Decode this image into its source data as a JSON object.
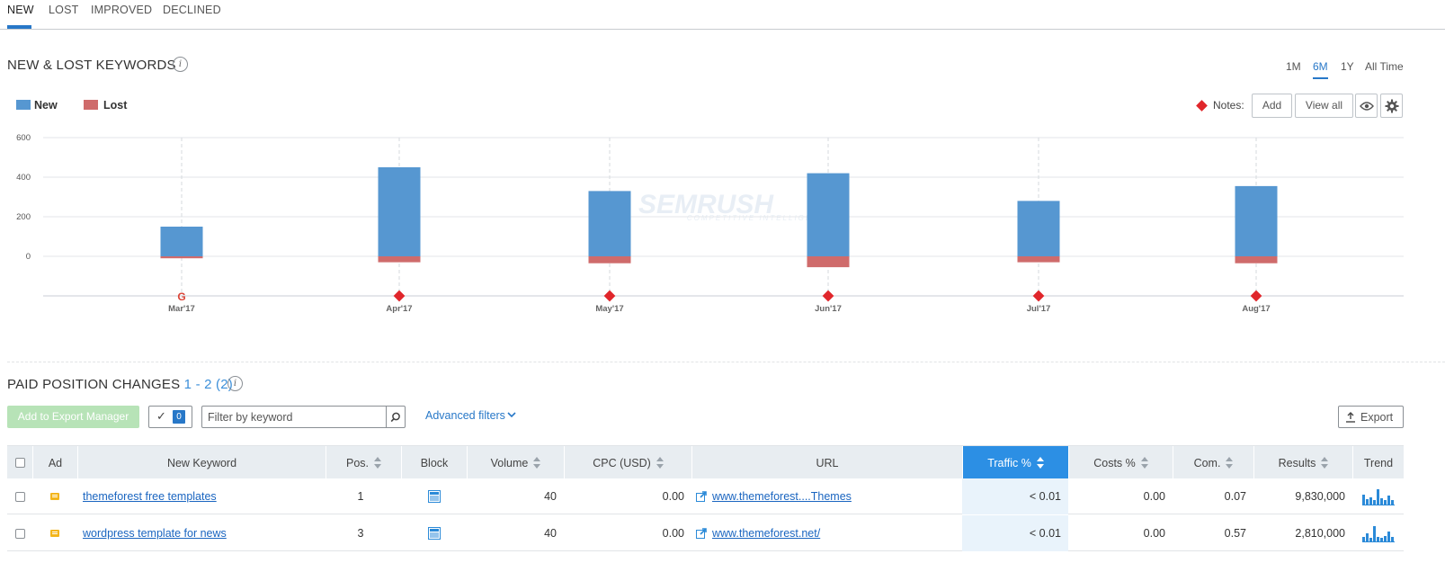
{
  "tabs": [
    {
      "label": "NEW",
      "active": true
    },
    {
      "label": "LOST",
      "active": false
    },
    {
      "label": "IMPROVED",
      "active": false
    },
    {
      "label": "DECLINED",
      "active": false
    }
  ],
  "keywords_section": {
    "title": "NEW & LOST KEYWORDS",
    "info_icon": "i"
  },
  "periods": [
    {
      "label": "1M",
      "active": false
    },
    {
      "label": "6M",
      "active": true
    },
    {
      "label": "1Y",
      "active": false
    },
    {
      "label": "All Time",
      "active": false
    }
  ],
  "legend": [
    {
      "label": "New",
      "color": "#5697d1"
    },
    {
      "label": "Lost",
      "color": "#cf6b6b"
    }
  ],
  "notes": {
    "label": "Notes:",
    "add_label": "Add",
    "view_all_label": "View all",
    "eye_icon": "eye-icon",
    "gear_icon": "gear-icon",
    "marker_color": "#e0262b"
  },
  "chart_data": {
    "type": "bar",
    "categories": [
      "Mar'17",
      "Apr'17",
      "May'17",
      "Jun'17",
      "Jul'17",
      "Aug'17"
    ],
    "series": [
      {
        "name": "New",
        "values": [
          150,
          450,
          330,
          420,
          280,
          355
        ],
        "color": "#5697d1"
      },
      {
        "name": "Lost",
        "values": [
          -10,
          -30,
          -35,
          -55,
          -30,
          -35
        ],
        "color": "#cf6b6b"
      }
    ],
    "y_ticks": [
      600,
      400,
      200,
      0
    ],
    "ylim": [
      -200,
      600
    ],
    "grid": true,
    "note_markers": [
      "google",
      "note",
      "note",
      "note",
      "note",
      "note"
    ],
    "watermark": "SEMRUSH",
    "watermark_sub": "COMPETITIVE INTELLIGENCE"
  },
  "paid_section": {
    "title": "PAID POSITION CHANGES",
    "range": "1 - 2 (2)",
    "info_icon": "i"
  },
  "toolbar": {
    "add_export_label": "Add to Export Manager",
    "selected_count": "0",
    "filter_placeholder": "Filter by keyword",
    "advanced_filters_label": "Advanced filters",
    "export_label": "Export"
  },
  "table": {
    "columns": [
      "",
      "Ad",
      "New Keyword",
      "Pos.",
      "Block",
      "Volume",
      "CPC (USD)",
      "URL",
      "Traffic %",
      "Costs %",
      "Com.",
      "Results",
      "Trend"
    ],
    "sorted_column": "Traffic %",
    "rows": [
      {
        "keyword": "themeforest free templates",
        "pos": "1",
        "volume": "40",
        "cpc": "0.00",
        "url": "www.themeforest....Themes",
        "traffic": "< 0.01",
        "costs": "0.00",
        "com": "0.07",
        "results": "9,830,000",
        "trend": [
          0.6,
          0.35,
          0.45,
          0.3,
          0.9,
          0.4,
          0.3,
          0.55,
          0.3
        ]
      },
      {
        "keyword": "wordpress template for news",
        "pos": "3",
        "volume": "40",
        "cpc": "0.00",
        "url": "www.themeforest.net/",
        "traffic": "< 0.01",
        "costs": "0.00",
        "com": "0.57",
        "results": "2,810,000",
        "trend": [
          0.3,
          0.5,
          0.25,
          0.9,
          0.3,
          0.25,
          0.35,
          0.6,
          0.3
        ]
      }
    ]
  }
}
